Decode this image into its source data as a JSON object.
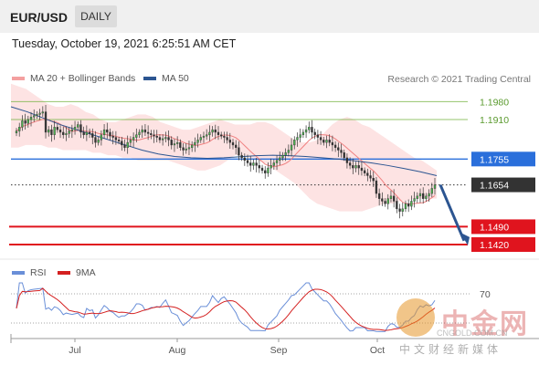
{
  "header": {
    "symbol": "EUR/USD",
    "timeframe": "DAILY"
  },
  "timestamp": "Tuesday, October 19, 2021 6:25:51 AM CET",
  "legend": {
    "ma20": "MA 20 + Bollinger Bands",
    "ma50": "MA 50",
    "ma20_color": "#f08080",
    "ma50_color": "#2c5591"
  },
  "copyright": "Research © 2021 Trading Central",
  "rsi_legend": {
    "rsi": "RSI",
    "ma": "9MA",
    "rsi_color": "#6a8fd8",
    "ma_color": "#d42020"
  },
  "watermark": {
    "cn": "中金网",
    "url": "CNGOLD.COM.CN",
    "sub": "中文财经新媒体"
  },
  "chart_data": {
    "type": "line",
    "x_labels": [
      "Jul",
      "Aug",
      "Sep",
      "Oct"
    ],
    "y_range": [
      1.137,
      1.2035
    ],
    "levels": [
      {
        "value": 1.198,
        "label": "1.1980",
        "kind": "resistance",
        "color": "#7ab648"
      },
      {
        "value": 1.191,
        "label": "1.1910",
        "kind": "resistance",
        "color": "#7ab648"
      },
      {
        "value": 1.1755,
        "label": "1.1755",
        "kind": "pivot",
        "color": "#2a6fdb"
      },
      {
        "value": 1.1654,
        "label": "1.1654",
        "kind": "last-price",
        "color": "#333333"
      },
      {
        "value": 1.149,
        "label": "1.1490",
        "kind": "support",
        "color": "#e0141e"
      },
      {
        "value": 1.142,
        "label": "1.1420",
        "kind": "support",
        "color": "#e0141e"
      }
    ],
    "ohlc_close": [
      1.1865,
      1.188,
      1.1905,
      1.1895,
      1.191,
      1.192,
      1.1925,
      1.193,
      1.1935,
      1.194,
      1.186,
      1.187,
      1.185,
      1.188,
      1.187,
      1.186,
      1.185,
      1.1855,
      1.1865,
      1.187,
      1.188,
      1.189,
      1.186,
      1.185,
      1.186,
      1.1855,
      1.184,
      1.182,
      1.183,
      1.185,
      1.187,
      1.186,
      1.1845,
      1.184,
      1.183,
      1.1825,
      1.181,
      1.18,
      1.182,
      1.183,
      1.184,
      1.185,
      1.186,
      1.187,
      1.186,
      1.1855,
      1.185,
      1.1845,
      1.184,
      1.183,
      1.1835,
      1.184,
      1.183,
      1.181,
      1.1815,
      1.182,
      1.18,
      1.179,
      1.1795,
      1.18,
      1.181,
      1.182,
      1.183,
      1.184,
      1.1845,
      1.185,
      1.186,
      1.187,
      1.186,
      1.185,
      1.1845,
      1.184,
      1.183,
      1.182,
      1.181,
      1.18,
      1.177,
      1.176,
      1.175,
      1.174,
      1.173,
      1.174,
      1.173,
      1.172,
      1.171,
      1.17,
      1.172,
      1.173,
      1.174,
      1.175,
      1.176,
      1.177,
      1.178,
      1.179,
      1.181,
      1.183,
      1.184,
      1.185,
      1.186,
      1.187,
      1.188,
      1.186,
      1.185,
      1.184,
      1.183,
      1.182,
      1.183,
      1.182,
      1.181,
      1.18,
      1.179,
      1.178,
      1.176,
      1.174,
      1.173,
      1.172,
      1.173,
      1.172,
      1.171,
      1.17,
      1.169,
      1.168,
      1.167,
      1.162,
      1.16,
      1.159,
      1.158,
      1.16,
      1.161,
      1.159,
      1.156,
      1.155,
      1.156,
      1.158,
      1.157,
      1.159,
      1.16,
      1.161,
      1.162,
      1.16,
      1.161,
      1.162,
      1.164,
      1.1654
    ],
    "bb_upper_shape": [
      1.205,
      1.204,
      1.203,
      1.201,
      1.199,
      1.197,
      1.196,
      1.196,
      1.197,
      1.196,
      1.194,
      1.193,
      1.191,
      1.19,
      1.19,
      1.191,
      1.192,
      1.193,
      1.193,
      1.192,
      1.19,
      1.189,
      1.188,
      1.187,
      1.187,
      1.188,
      1.189,
      1.19,
      1.191,
      1.19,
      1.189,
      1.189,
      1.189,
      1.19,
      1.19,
      1.189,
      1.187,
      1.185,
      1.183,
      1.182,
      1.182,
      1.183,
      1.186,
      1.189,
      1.191,
      1.192,
      1.191,
      1.189,
      1.188,
      1.186,
      1.184,
      1.182,
      1.18,
      1.178,
      1.176,
      1.175,
      1.173,
      1.171
    ],
    "bb_lower_shape": [
      1.18,
      1.18,
      1.181,
      1.181,
      1.181,
      1.18,
      1.18,
      1.179,
      1.179,
      1.179,
      1.179,
      1.178,
      1.178,
      1.177,
      1.177,
      1.176,
      1.176,
      1.175,
      1.175,
      1.175,
      1.175,
      1.175,
      1.174,
      1.173,
      1.172,
      1.171,
      1.171,
      1.172,
      1.173,
      1.175,
      1.177,
      1.177,
      1.176,
      1.175,
      1.174,
      1.172,
      1.17,
      1.168,
      1.166,
      1.163,
      1.16,
      1.158,
      1.157,
      1.156,
      1.155,
      1.155,
      1.155,
      1.155,
      1.156,
      1.157,
      1.158,
      1.158,
      1.159,
      1.159,
      1.16,
      1.16,
      1.16,
      1.16
    ],
    "ma50": [
      1.196,
      1.194,
      1.1915,
      1.189,
      1.187,
      1.185,
      1.183,
      1.181,
      1.179,
      1.1775,
      1.1765,
      1.176,
      1.1758,
      1.176,
      1.1764,
      1.1768,
      1.177,
      1.1768,
      1.1765,
      1.176,
      1.1755,
      1.1748,
      1.174,
      1.173,
      1.1718,
      1.1705,
      1.169
    ],
    "rsi": {
      "levels": [
        70,
        30
      ],
      "range": [
        15,
        85
      ]
    }
  }
}
